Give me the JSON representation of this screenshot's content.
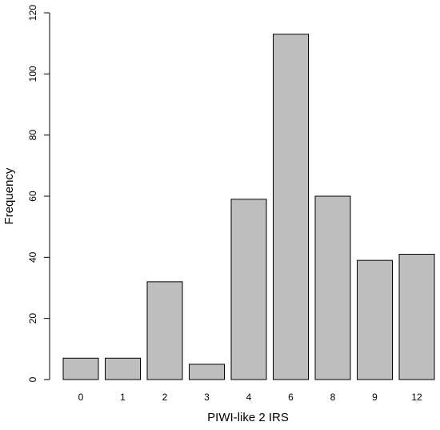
{
  "chart_data": {
    "type": "bar",
    "title": "",
    "xlabel": "PIWI-like 2 IRS",
    "ylabel": "Frequency",
    "categories": [
      "0",
      "1",
      "2",
      "3",
      "4",
      "6",
      "8",
      "9",
      "12"
    ],
    "values": [
      7,
      7,
      32,
      5,
      59,
      113,
      60,
      39,
      41
    ],
    "ylim": [
      0,
      120
    ],
    "yticks": [
      0,
      20,
      40,
      60,
      80,
      100,
      120
    ],
    "grid": false,
    "legend": "none",
    "bar_color": "#bebebe",
    "bar_edge_color": "#000000"
  }
}
